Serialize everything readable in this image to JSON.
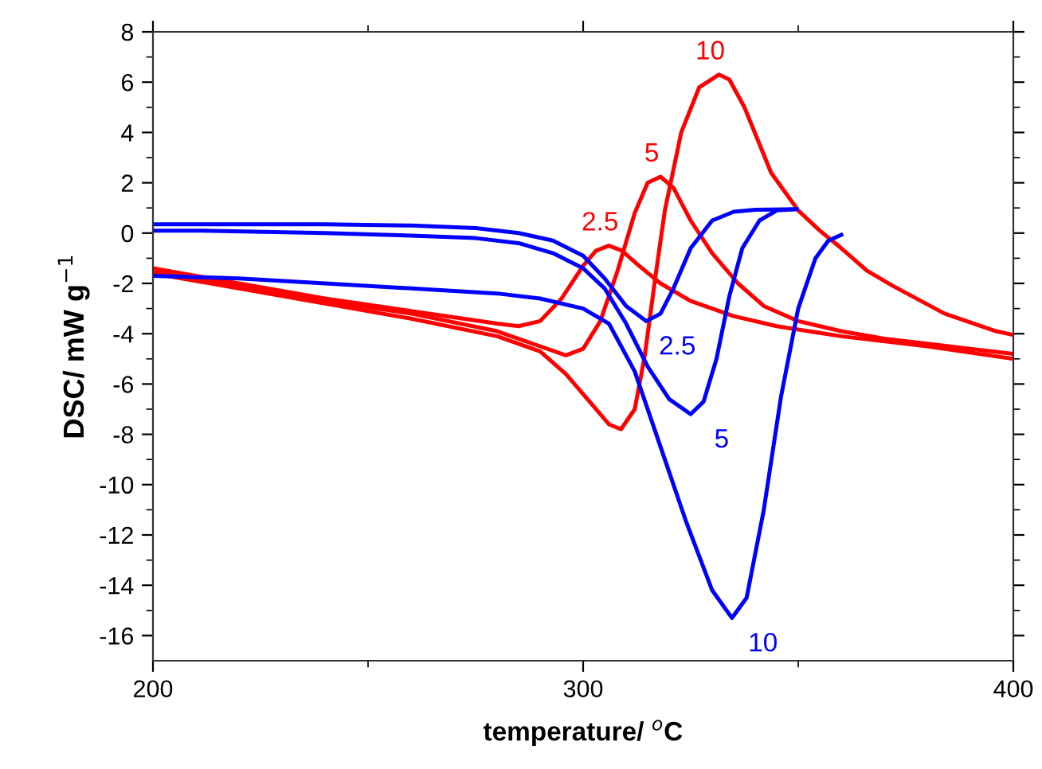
{
  "chart_data": {
    "type": "line",
    "xlabel": "temperature/ $^{o}$C",
    "ylabel": "DSC/ mW g$^{−1}$",
    "xlim": [
      200,
      400
    ],
    "ylim": [
      -17,
      8
    ],
    "xticks": [
      200,
      {
        "value": 250,
        "label": null
      },
      300,
      {
        "value": 350,
        "label": null
      },
      400
    ],
    "yticks": [
      8,
      {
        "value": 7,
        "label": null
      },
      6,
      {
        "value": 5,
        "label": null
      },
      4,
      {
        "value": 3,
        "label": null
      },
      2,
      {
        "value": 1,
        "label": null
      },
      0,
      {
        "value": -1,
        "label": null
      },
      -2,
      {
        "value": -3,
        "label": null
      },
      -4,
      {
        "value": -5,
        "label": null
      },
      -6,
      {
        "value": -7,
        "label": null
      },
      -8,
      {
        "value": -9,
        "label": null
      },
      -10,
      {
        "value": -11,
        "label": null
      },
      -12,
      {
        "value": -13,
        "label": null
      },
      -14,
      {
        "value": -15,
        "label": null
      },
      -16
    ],
    "grid": false,
    "marker": "none",
    "line_style": "solid",
    "series": [
      {
        "name": "10",
        "color": "#ff0000",
        "x": [
          200,
          220,
          240,
          260,
          280,
          290,
          296,
          302,
          306,
          308.8,
          312,
          314.3,
          317,
          319,
          322.8,
          327,
          331.6,
          334,
          337.5,
          343.7,
          350,
          355,
          360,
          366,
          372,
          384,
          396,
          400
        ],
        "values": [
          -1.6,
          -2.2,
          -2.8,
          -3.4,
          -4.1,
          -4.7,
          -5.6,
          -6.8,
          -7.6,
          -7.8,
          -7,
          -4.9,
          -1.5,
          0.9,
          4,
          5.8,
          6.3,
          6.1,
          5.0,
          2.4,
          0.9,
          0.1,
          -0.6,
          -1.5,
          -2.1,
          -3.2,
          -3.9,
          -4.05
        ]
      },
      {
        "name": "5",
        "color": "#ff0000",
        "x": [
          200,
          220,
          240,
          260,
          280,
          290,
          296,
          300,
          304,
          308,
          312,
          315,
          318,
          321,
          325,
          330,
          336,
          342,
          350,
          360,
          370,
          380,
          390,
          400
        ],
        "values": [
          -1.5,
          -2.1,
          -2.7,
          -3.2,
          -3.9,
          -4.5,
          -4.86,
          -4.6,
          -3.5,
          -1.5,
          0.8,
          2.0,
          2.24,
          1.8,
          0.5,
          -0.8,
          -2.0,
          -2.9,
          -3.5,
          -3.9,
          -4.2,
          -4.4,
          -4.6,
          -4.8
        ]
      },
      {
        "name": "2.5",
        "color": "#ff0000",
        "x": [
          200,
          220,
          240,
          260,
          280,
          285,
          290,
          295,
          300,
          303,
          306,
          309,
          313,
          318,
          325,
          335,
          345,
          360,
          380,
          400
        ],
        "values": [
          -1.4,
          -2.0,
          -2.6,
          -3.1,
          -3.6,
          -3.7,
          -3.5,
          -2.6,
          -1.3,
          -0.7,
          -0.5,
          -0.7,
          -1.3,
          -2.0,
          -2.7,
          -3.3,
          -3.7,
          -4.1,
          -4.5,
          -5.0
        ]
      },
      {
        "name": "2.5",
        "color": "#0000ff",
        "x": [
          200,
          240,
          260,
          275,
          285,
          293,
          300,
          305,
          310,
          314.7,
          318,
          321,
          325,
          330,
          335,
          340,
          349.6
        ],
        "values": [
          0.35,
          0.35,
          0.3,
          0.2,
          0,
          -0.3,
          -0.9,
          -1.8,
          -2.9,
          -3.5,
          -3.2,
          -2.2,
          -0.6,
          0.5,
          0.85,
          0.93,
          0.95
        ]
      },
      {
        "name": "5",
        "color": "#0000ff",
        "x": [
          200,
          210,
          240,
          260,
          275,
          285,
          293,
          300,
          305,
          310,
          315,
          320,
          325,
          328,
          331,
          334,
          337,
          341,
          345,
          349.6
        ],
        "values": [
          0.1,
          0.1,
          0.0,
          -0.1,
          -0.2,
          -0.4,
          -0.8,
          -1.4,
          -2.2,
          -3.6,
          -5.3,
          -6.6,
          -7.2,
          -6.7,
          -5,
          -2.5,
          -0.6,
          0.5,
          0.9,
          0.95
        ]
      },
      {
        "name": "10",
        "color": "#0000ff",
        "x": [
          200,
          220,
          240,
          260,
          280,
          290,
          300,
          306,
          312,
          318,
          324,
          330,
          334.6,
          338,
          342,
          346,
          350,
          354,
          357,
          360
        ],
        "values": [
          -1.7,
          -1.8,
          -2.0,
          -2.2,
          -2.4,
          -2.6,
          -3.0,
          -3.6,
          -5.5,
          -8.5,
          -11.5,
          -14.2,
          -15.3,
          -14.5,
          -11,
          -6.5,
          -3,
          -1.0,
          -0.3,
          -0.07
        ]
      }
    ]
  }
}
